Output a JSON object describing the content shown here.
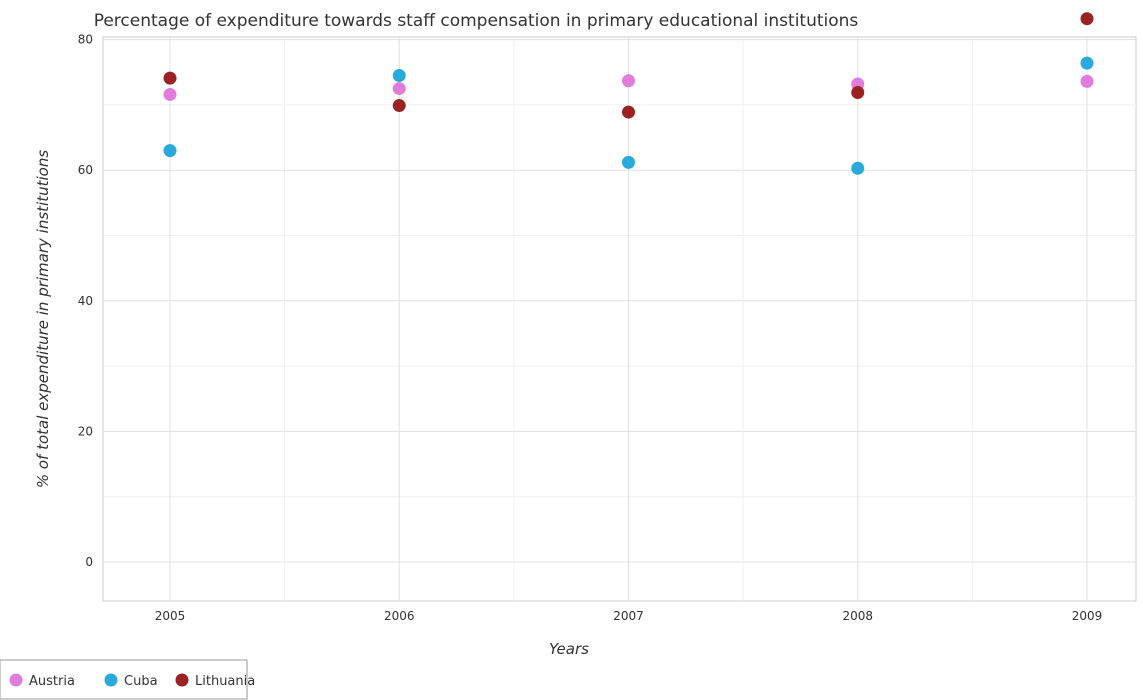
{
  "chart_data": {
    "type": "scatter",
    "title": "Percentage of expenditure towards staff compensation in primary educational institutions",
    "xlabel": "Years",
    "ylabel": "% of total expenditure in primary institutions",
    "categories": [
      "2005",
      "2006",
      "2007",
      "2008",
      "2009"
    ],
    "ylim": [
      0,
      86
    ],
    "yticks": [
      0,
      20,
      40,
      60,
      80
    ],
    "grid": true,
    "legend_position": "bottom-left",
    "series": [
      {
        "name": "Austria",
        "color": "#e17bdc",
        "values": [
          71.6,
          72.5,
          73.7,
          73.2,
          73.6
        ]
      },
      {
        "name": "Cuba",
        "color": "#29a9dc",
        "values": [
          63.0,
          74.5,
          61.2,
          60.3,
          76.4
        ]
      },
      {
        "name": "Lithuania",
        "color": "#9b2222",
        "values": [
          74.1,
          69.9,
          68.9,
          71.9,
          83.2
        ]
      }
    ]
  }
}
